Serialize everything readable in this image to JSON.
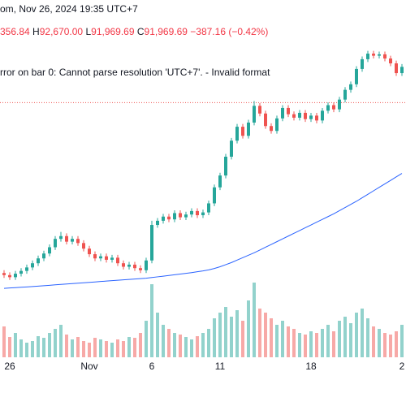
{
  "chart_data": {
    "type": "candlestick",
    "header": "om, Nov 26, 2024 19:35 UTC+7",
    "ohlc_open": "356.84",
    "ohlc": [
      {
        "key": "H",
        "value": "92,670.00"
      },
      {
        "key": "L",
        "value": "91,969.69"
      },
      {
        "key": "C",
        "value": "91,969.69"
      }
    ],
    "change": "−387.16 (−0.42%)",
    "error": "rror on bar 0: Cannot parse resolution 'UTC+7'. - Invalid format",
    "categories": [
      null,
      "26",
      null,
      null,
      null,
      null,
      null,
      null,
      null,
      null,
      null,
      null,
      null,
      null,
      null,
      "Nov",
      null,
      null,
      null,
      null,
      null,
      null,
      null,
      null,
      null,
      null,
      "6",
      null,
      null,
      null,
      null,
      null,
      null,
      null,
      null,
      null,
      null,
      null,
      "11",
      null,
      null,
      null,
      null,
      null,
      null,
      null,
      null,
      null,
      null,
      null,
      null,
      null,
      null,
      null,
      "18",
      null,
      null,
      null,
      null,
      null,
      null,
      null,
      null,
      null,
      null,
      null,
      null,
      null,
      null,
      null,
      "2"
    ],
    "open": [
      67500,
      67200,
      66900,
      67400,
      67800,
      68300,
      68900,
      69600,
      70300,
      71200,
      72400,
      72800,
      72000,
      72400,
      71800,
      71000,
      70200,
      69600,
      69900,
      69400,
      69700,
      68900,
      68400,
      68700,
      68200,
      67900,
      69300,
      74400,
      75000,
      75600,
      75200,
      76100,
      75500,
      75900,
      76400,
      75800,
      76200,
      77500,
      79800,
      81500,
      84200,
      86500,
      88500,
      87200,
      89100,
      91500,
      90400,
      88600,
      87900,
      89700,
      91200,
      90300,
      89800,
      90500,
      89600,
      90100,
      89400,
      90800,
      91600,
      91000,
      92400,
      93800,
      94600,
      96800,
      98200,
      99000,
      98700,
      98900,
      98300,
      97600,
      96200
    ],
    "high": [
      67900,
      67600,
      67800,
      68200,
      68700,
      69300,
      70000,
      70700,
      71600,
      72800,
      73400,
      73200,
      72800,
      72800,
      72200,
      71400,
      70600,
      70300,
      70300,
      70100,
      70100,
      69300,
      69100,
      69100,
      68600,
      69700,
      75000,
      75400,
      76000,
      76000,
      76500,
      76500,
      76300,
      76800,
      76800,
      76600,
      77900,
      80200,
      81900,
      84600,
      86900,
      88900,
      88900,
      89500,
      92200,
      91900,
      90800,
      89000,
      90100,
      91600,
      91600,
      90700,
      90900,
      90900,
      90500,
      90500,
      91200,
      92000,
      92000,
      92800,
      94200,
      95000,
      97200,
      98600,
      99400,
      99400,
      99300,
      99300,
      98700,
      98000,
      97500
    ],
    "low": [
      66800,
      66500,
      66500,
      67000,
      67400,
      67900,
      68500,
      69200,
      69900,
      70800,
      72000,
      71600,
      71600,
      71400,
      70600,
      69800,
      69200,
      69200,
      69000,
      69000,
      68500,
      68000,
      68000,
      67800,
      67500,
      67500,
      68900,
      74000,
      74600,
      74800,
      74800,
      75100,
      75100,
      75500,
      75400,
      75400,
      75800,
      77100,
      79400,
      81100,
      83800,
      86100,
      86800,
      86800,
      88700,
      90000,
      88200,
      87500,
      87500,
      89300,
      89900,
      89400,
      89400,
      89200,
      89200,
      89000,
      89000,
      90400,
      90600,
      90600,
      92000,
      93400,
      94200,
      96400,
      97800,
      98300,
      98300,
      97900,
      97200,
      95800,
      95800
    ],
    "close": [
      67200,
      66900,
      67400,
      67800,
      68300,
      68900,
      69600,
      70300,
      71200,
      72400,
      72800,
      72000,
      72400,
      71800,
      71000,
      70200,
      69600,
      69900,
      69400,
      69700,
      68900,
      68400,
      68700,
      68200,
      67900,
      69300,
      74400,
      75000,
      75600,
      75200,
      76100,
      75500,
      75900,
      76400,
      75800,
      76200,
      77500,
      79800,
      81500,
      84200,
      86500,
      88500,
      87200,
      89100,
      91500,
      90400,
      88600,
      87900,
      89700,
      91200,
      90300,
      89800,
      90500,
      89600,
      90100,
      89400,
      90800,
      91600,
      91000,
      92400,
      93800,
      94600,
      96800,
      98200,
      99000,
      98700,
      98900,
      98300,
      97600,
      96200,
      97100
    ],
    "volume": [
      38,
      25,
      30,
      22,
      18,
      20,
      26,
      24,
      30,
      35,
      40,
      28,
      22,
      25,
      20,
      18,
      24,
      22,
      20,
      18,
      22,
      20,
      25,
      24,
      30,
      45,
      90,
      55,
      40,
      35,
      30,
      28,
      25,
      22,
      26,
      30,
      35,
      48,
      55,
      62,
      50,
      58,
      45,
      70,
      92,
      60,
      55,
      48,
      40,
      45,
      38,
      35,
      30,
      28,
      32,
      30,
      35,
      40,
      32,
      45,
      50,
      42,
      55,
      60,
      48,
      38,
      35,
      30,
      28,
      32,
      40
    ],
    "ma": {
      "color": "#2962ff",
      "values": [
        65300,
        65350,
        65400,
        65450,
        65500,
        65560,
        65620,
        65680,
        65740,
        65800,
        65860,
        65920,
        65980,
        66040,
        66100,
        66160,
        66220,
        66280,
        66340,
        66400,
        66460,
        66520,
        66580,
        66640,
        66700,
        66760,
        66850,
        66950,
        67050,
        67150,
        67250,
        67350,
        67450,
        67560,
        67680,
        67800,
        67950,
        68150,
        68400,
        68700,
        69000,
        69350,
        69700,
        70050,
        70400,
        70800,
        71200,
        71600,
        72000,
        72400,
        72800,
        73200,
        73600,
        74000,
        74400,
        74800,
        75200,
        75600,
        76000,
        76450,
        76900,
        77350,
        77800,
        78300,
        78800,
        79300,
        79800,
        80300,
        80800,
        81300,
        81800
      ]
    },
    "price_line": 91969.69,
    "up_color": "#26a69a",
    "down_color": "#ef5350",
    "ylim": [
      55400,
      106700
    ],
    "volume_lim": [
      0,
      100
    ]
  }
}
